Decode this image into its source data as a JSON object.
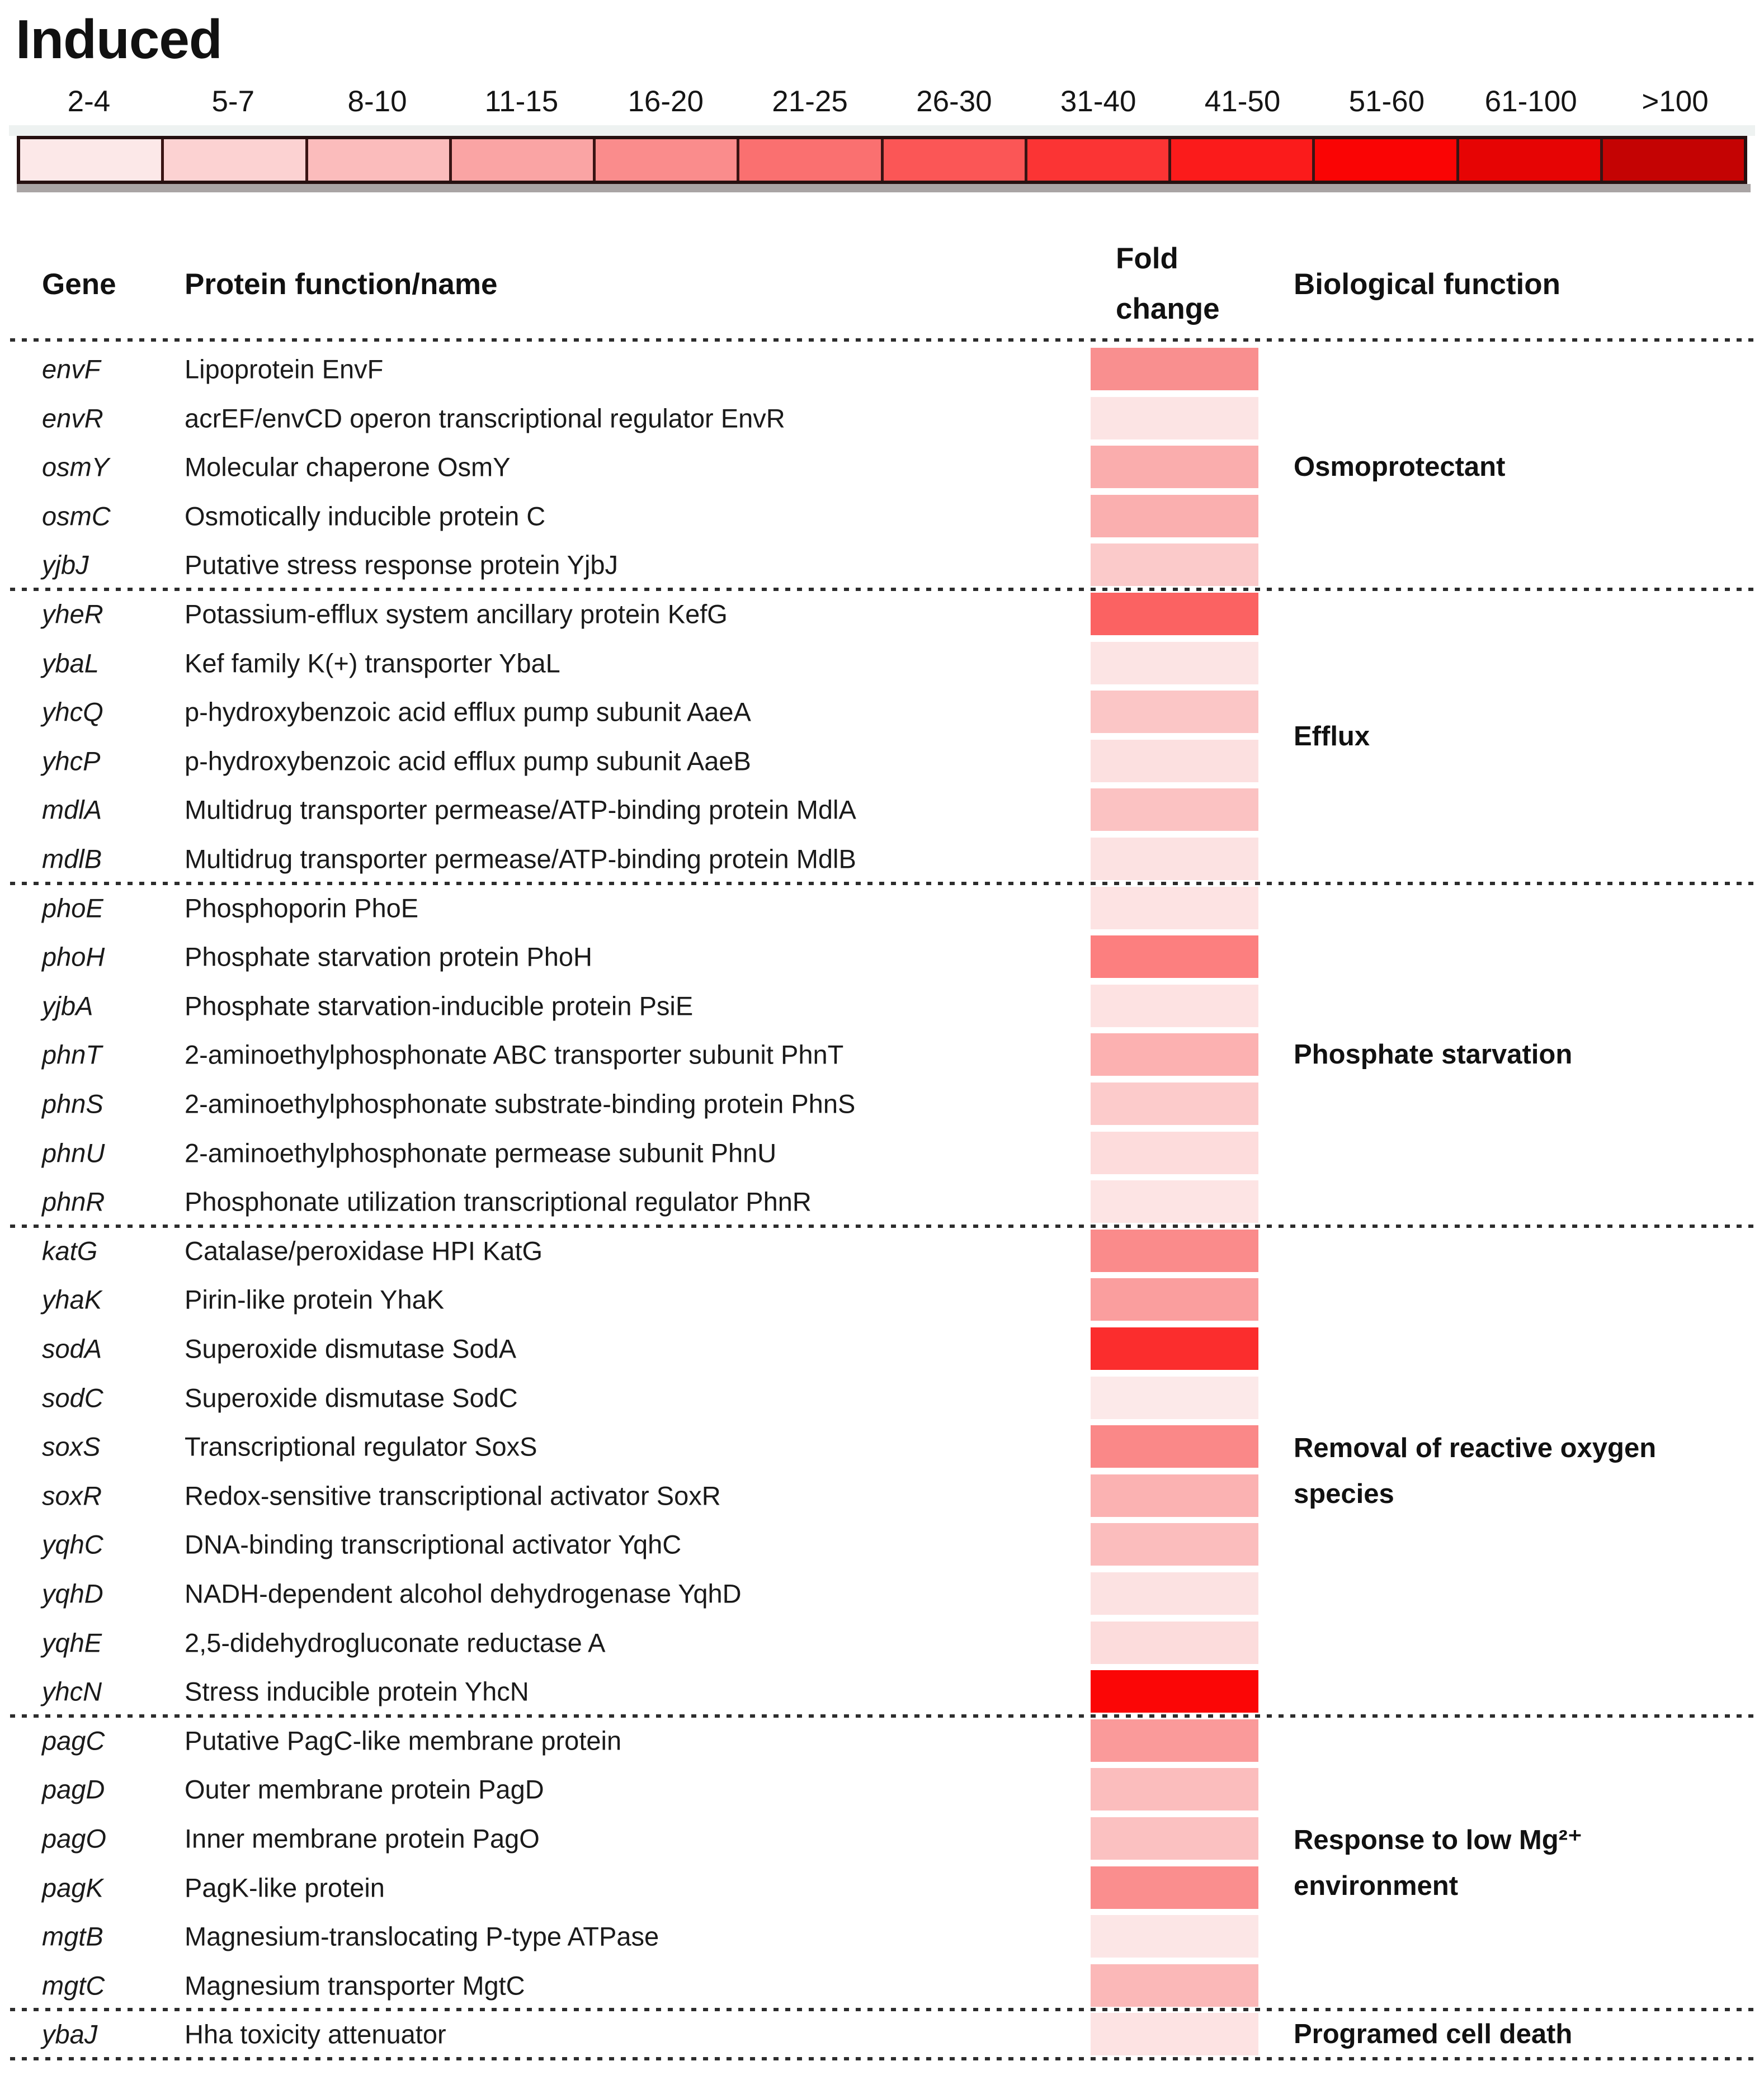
{
  "title": "Induced",
  "legend": {
    "bins": [
      {
        "label": "2-4",
        "color": "#FCE8E8"
      },
      {
        "label": "5-7",
        "color": "#FCD2D2"
      },
      {
        "label": "8-10",
        "color": "#FBBCBC"
      },
      {
        "label": "11-15",
        "color": "#FAA4A4"
      },
      {
        "label": "16-20",
        "color": "#FA8C8C"
      },
      {
        "label": "21-25",
        "color": "#FA7070"
      },
      {
        "label": "26-30",
        "color": "#FB5656"
      },
      {
        "label": "31-40",
        "color": "#FB3434"
      },
      {
        "label": "41-50",
        "color": "#FB1B1B"
      },
      {
        "label": "51-60",
        "color": "#FA0404"
      },
      {
        "label": "61-100",
        "color": "#E60404"
      },
      {
        "label": ">100",
        "color": "#C40303"
      }
    ]
  },
  "table": {
    "headers": {
      "gene": "Gene",
      "protein": "Protein function/name",
      "fold_line1": "Fold",
      "fold_line2": "change",
      "bio": "Biological function"
    },
    "groups": [
      {
        "function_label_lines": [
          "Osmoprotectant"
        ],
        "rows": [
          {
            "gene": "envF",
            "protein": "Lipoprotein EnvF",
            "fold_color": "#F98F8F",
            "fold_bin": "16-20"
          },
          {
            "gene": "envR",
            "protein": "acrEF/envCD operon transcriptional regulator EnvR",
            "fold_color": "#FCE4E4",
            "fold_bin": "2-4"
          },
          {
            "gene": "osmY",
            "protein": "Molecular chaperone OsmY",
            "fold_color": "#FAADAD",
            "fold_bin": "11-15"
          },
          {
            "gene": "osmC",
            "protein": "Osmotically inducible protein C",
            "fold_color": "#FAAFAF",
            "fold_bin": "11-15"
          },
          {
            "gene": "yjbJ",
            "protein": "Putative stress response protein YjbJ",
            "fold_color": "#FBCACA",
            "fold_bin": "5-7"
          }
        ]
      },
      {
        "function_label_lines": [
          "Efflux"
        ],
        "rows": [
          {
            "gene": "yheR",
            "protein": "Potassium-efflux system ancillary protein KefG",
            "fold_color": "#FB6262",
            "fold_bin": "21-25"
          },
          {
            "gene": "ybaL",
            "protein": "Kef family K(+) transporter YbaL",
            "fold_color": "#FCE4E4",
            "fold_bin": "2-4"
          },
          {
            "gene": "yhcQ",
            "protein": "p-hydroxybenzoic acid efflux pump subunit AaeA",
            "fold_color": "#FBC6C6",
            "fold_bin": "5-7"
          },
          {
            "gene": "yhcP",
            "protein": "p-hydroxybenzoic acid efflux pump subunit AaeB",
            "fold_color": "#FCE0E0",
            "fold_bin": "2-4"
          },
          {
            "gene": "mdlA",
            "protein": "Multidrug transporter permease/ATP-binding protein MdlA",
            "fold_color": "#FBC2C2",
            "fold_bin": "8-10"
          },
          {
            "gene": "mdlB",
            "protein": "Multidrug transporter permease/ATP-binding protein MdlB",
            "fold_color": "#FCE2E2",
            "fold_bin": "2-4"
          }
        ]
      },
      {
        "function_label_lines": [
          "Phosphate starvation"
        ],
        "rows": [
          {
            "gene": "phoE",
            "protein": "Phosphoporin PhoE",
            "fold_color": "#FDE3E3",
            "fold_bin": "2-4"
          },
          {
            "gene": "phoH",
            "protein": "Phosphate starvation protein PhoH",
            "fold_color": "#FC7F7F",
            "fold_bin": "16-20"
          },
          {
            "gene": "yjbA",
            "protein": "Phosphate starvation-inducible protein PsiE",
            "fold_color": "#FDE2E2",
            "fold_bin": "2-4"
          },
          {
            "gene": "phnT",
            "protein": "2-aminoethylphosphonate ABC transporter subunit PhnT",
            "fold_color": "#FCB1B1",
            "fold_bin": "8-10"
          },
          {
            "gene": "phnS",
            "protein": "2-aminoethylphosphonate substrate-binding protein PhnS",
            "fold_color": "#FCCBCB",
            "fold_bin": "5-7"
          },
          {
            "gene": "phnU",
            "protein": "2-aminoethylphosphonate permease subunit PhnU",
            "fold_color": "#FDDCDC",
            "fold_bin": "5-7"
          },
          {
            "gene": "phnR",
            "protein": "Phosphonate utilization transcriptional regulator PhnR",
            "fold_color": "#FDE4E4",
            "fold_bin": "2-4"
          }
        ]
      },
      {
        "function_label_lines": [
          "Removal of reactive oxygen",
          "species"
        ],
        "rows": [
          {
            "gene": "katG",
            "protein": "Catalase/peroxidase HPI KatG",
            "fold_color": "#FA8B8B",
            "fold_bin": "16-20"
          },
          {
            "gene": "yhaK",
            "protein": "Pirin-like protein YhaK",
            "fold_color": "#FA9E9E",
            "fold_bin": "11-15"
          },
          {
            "gene": "sodA",
            "protein": "Superoxide dismutase SodA",
            "fold_color": "#FB2D2D",
            "fold_bin": "31-40"
          },
          {
            "gene": "sodC",
            "protein": "Superoxide dismutase SodC",
            "fold_color": "#FCE9E9",
            "fold_bin": "2-4"
          },
          {
            "gene": "soxS",
            "protein": "Transcriptional regulator SoxS",
            "fold_color": "#FA8888",
            "fold_bin": "16-20"
          },
          {
            "gene": "soxR",
            "protein": "Redox-sensitive transcriptional activator SoxR",
            "fold_color": "#FBB2B2",
            "fold_bin": "8-10"
          },
          {
            "gene": "yqhC",
            "protein": "DNA-binding transcriptional activator YqhC",
            "fold_color": "#FBBDBD",
            "fold_bin": "8-10"
          },
          {
            "gene": "yqhD",
            "protein": "NADH-dependent alcohol dehydrogenase YqhD",
            "fold_color": "#FCE2E2",
            "fold_bin": "2-4"
          },
          {
            "gene": "yqhE",
            "protein": "2,5-didehydrogluconate reductase A",
            "fold_color": "#FCDCDC",
            "fold_bin": "2-4"
          },
          {
            "gene": "yhcN",
            "protein": "Stress inducible protein YhcN",
            "fold_color": "#FB0606",
            "fold_bin": "51-60"
          }
        ]
      },
      {
        "function_label_lines": [
          "Response to low Mg²⁺",
          "environment"
        ],
        "rows": [
          {
            "gene": "pagC",
            "protein": "Putative PagC-like membrane protein",
            "fold_color": "#FA9A9A",
            "fold_bin": "11-15"
          },
          {
            "gene": "pagD",
            "protein": "Outer membrane protein PagD",
            "fold_color": "#FBBDBD",
            "fold_bin": "8-10"
          },
          {
            "gene": "pagO",
            "protein": "Inner membrane protein PagO",
            "fold_color": "#FBC1C1",
            "fold_bin": "8-10"
          },
          {
            "gene": "pagK",
            "protein": "PagK-like protein",
            "fold_color": "#FA8E8E",
            "fold_bin": "16-20"
          },
          {
            "gene": "mgtB",
            "protein": "Magnesium-translocating P-type ATPase",
            "fold_color": "#FCE6E6",
            "fold_bin": "2-4"
          },
          {
            "gene": "mgtC",
            "protein": "Magnesium transporter MgtC",
            "fold_color": "#FBB8B8",
            "fold_bin": "8-10"
          }
        ]
      },
      {
        "function_label_lines": [
          "Programed cell death"
        ],
        "rows": [
          {
            "gene": "ybaJ",
            "protein": "Hha toxicity attenuator",
            "fold_color": "#FDE3E3",
            "fold_bin": "2-4"
          }
        ]
      }
    ]
  },
  "chart_data": {
    "type": "heatmap",
    "title": "Induced",
    "legend_bins": [
      "2-4",
      "5-7",
      "8-10",
      "11-15",
      "16-20",
      "21-25",
      "26-30",
      "31-40",
      "41-50",
      "51-60",
      "61-100",
      ">100"
    ],
    "value_label": "Fold change",
    "rows": [
      {
        "gene": "envF",
        "fold_bin": "16-20"
      },
      {
        "gene": "envR",
        "fold_bin": "2-4"
      },
      {
        "gene": "osmY",
        "fold_bin": "11-15"
      },
      {
        "gene": "osmC",
        "fold_bin": "11-15"
      },
      {
        "gene": "yjbJ",
        "fold_bin": "5-7"
      },
      {
        "gene": "yheR",
        "fold_bin": "21-25"
      },
      {
        "gene": "ybaL",
        "fold_bin": "2-4"
      },
      {
        "gene": "yhcQ",
        "fold_bin": "5-7"
      },
      {
        "gene": "yhcP",
        "fold_bin": "2-4"
      },
      {
        "gene": "mdlA",
        "fold_bin": "8-10"
      },
      {
        "gene": "mdlB",
        "fold_bin": "2-4"
      },
      {
        "gene": "phoE",
        "fold_bin": "2-4"
      },
      {
        "gene": "phoH",
        "fold_bin": "16-20"
      },
      {
        "gene": "yjbA",
        "fold_bin": "2-4"
      },
      {
        "gene": "phnT",
        "fold_bin": "8-10"
      },
      {
        "gene": "phnS",
        "fold_bin": "5-7"
      },
      {
        "gene": "phnU",
        "fold_bin": "5-7"
      },
      {
        "gene": "phnR",
        "fold_bin": "2-4"
      },
      {
        "gene": "katG",
        "fold_bin": "16-20"
      },
      {
        "gene": "yhaK",
        "fold_bin": "11-15"
      },
      {
        "gene": "sodA",
        "fold_bin": "31-40"
      },
      {
        "gene": "sodC",
        "fold_bin": "2-4"
      },
      {
        "gene": "soxS",
        "fold_bin": "16-20"
      },
      {
        "gene": "soxR",
        "fold_bin": "8-10"
      },
      {
        "gene": "yqhC",
        "fold_bin": "8-10"
      },
      {
        "gene": "yqhD",
        "fold_bin": "2-4"
      },
      {
        "gene": "yqhE",
        "fold_bin": "2-4"
      },
      {
        "gene": "yhcN",
        "fold_bin": "51-60"
      },
      {
        "gene": "pagC",
        "fold_bin": "11-15"
      },
      {
        "gene": "pagD",
        "fold_bin": "8-10"
      },
      {
        "gene": "pagO",
        "fold_bin": "8-10"
      },
      {
        "gene": "pagK",
        "fold_bin": "16-20"
      },
      {
        "gene": "mgtB",
        "fold_bin": "2-4"
      },
      {
        "gene": "mgtC",
        "fold_bin": "8-10"
      },
      {
        "gene": "ybaJ",
        "fold_bin": "2-4"
      }
    ]
  }
}
